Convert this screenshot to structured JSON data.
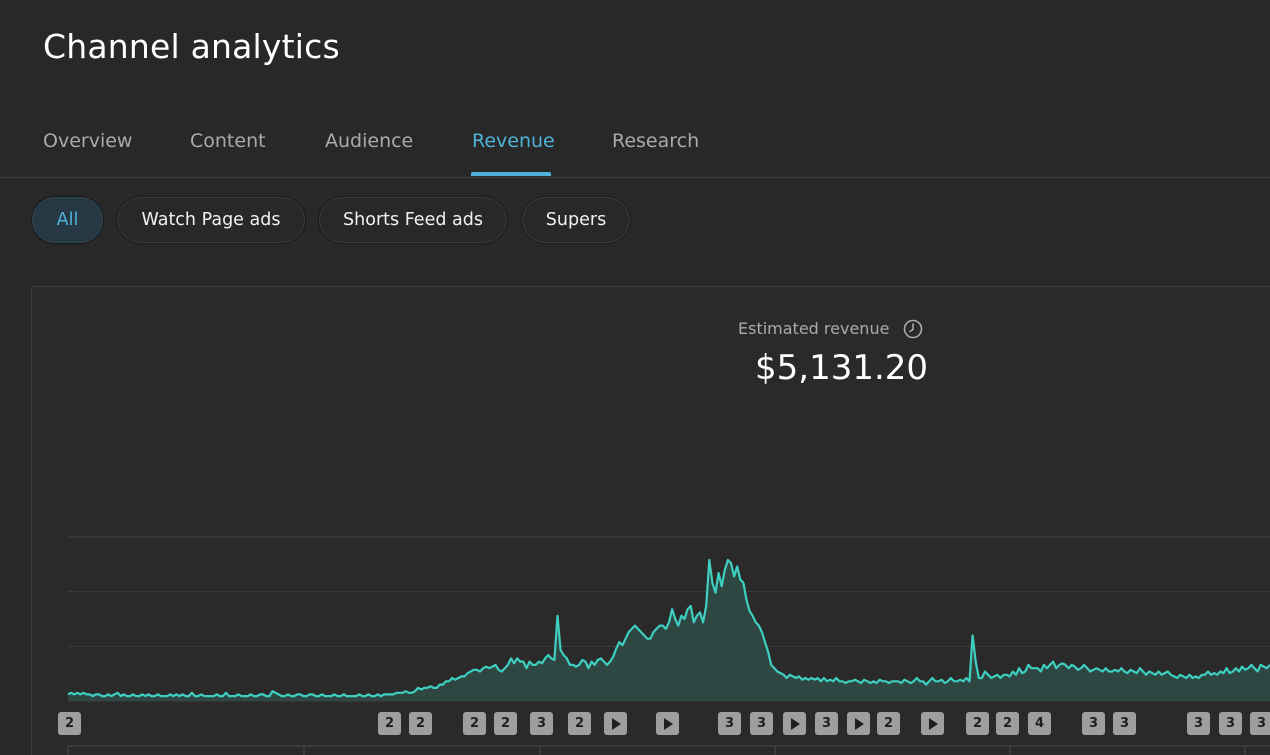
{
  "header": {
    "title": "Channel analytics"
  },
  "tabs": [
    {
      "label": "Overview"
    },
    {
      "label": "Content"
    },
    {
      "label": "Audience"
    },
    {
      "label": "Revenue",
      "active": true
    },
    {
      "label": "Research"
    }
  ],
  "chips": [
    {
      "label": "All",
      "active": true
    },
    {
      "label": "Watch Page ads"
    },
    {
      "label": "Shorts Feed ads"
    },
    {
      "label": "Supers"
    }
  ],
  "metric": {
    "label": "Estimated revenue",
    "value": "$5,131.20",
    "icon": "clock-icon"
  },
  "colors": {
    "accent": "#4fb3d9",
    "line": "#3ecfc0",
    "area": "#2f4a46",
    "background": "#282828"
  },
  "chart_data": {
    "type": "area",
    "title": "",
    "xlabel": "",
    "ylabel": "",
    "ylim": [
      0,
      100
    ],
    "grid": true,
    "series": [
      {
        "values": [
          4,
          5,
          4,
          5,
          4,
          5,
          4,
          4,
          3,
          4,
          4,
          3,
          3,
          4,
          3,
          4,
          5,
          3,
          4,
          3,
          3,
          4,
          3,
          3,
          4,
          3,
          4,
          3,
          3,
          4,
          3,
          3,
          3,
          4,
          3,
          4,
          3,
          4,
          3,
          3,
          5,
          3,
          3,
          4,
          3,
          3,
          3,
          3,
          4,
          3,
          3,
          5,
          3,
          3,
          3,
          4,
          3,
          3,
          3,
          4,
          3,
          3,
          4,
          4,
          3,
          3,
          6,
          5,
          4,
          3,
          3,
          4,
          3,
          3,
          4,
          4,
          3,
          3,
          4,
          4,
          3,
          3,
          4,
          3,
          3,
          3,
          4,
          3,
          3,
          4,
          3,
          3,
          3,
          3,
          4,
          3,
          3,
          4,
          3,
          3,
          4,
          3,
          4,
          4,
          4,
          4,
          5,
          5,
          5,
          6,
          5,
          5,
          6,
          8,
          7,
          8,
          8,
          9,
          8,
          8,
          10,
          10,
          12,
          12,
          14,
          13,
          14,
          15,
          15,
          17,
          18,
          19,
          19,
          18,
          20,
          21,
          20,
          21,
          22,
          19,
          18,
          20,
          22,
          26,
          23,
          26,
          24,
          24,
          20,
          24,
          22,
          22,
          24,
          23,
          26,
          28,
          26,
          25,
          52,
          31,
          28,
          26,
          22,
          22,
          21,
          22,
          25,
          24,
          20,
          24,
          22,
          25,
          26,
          24,
          22,
          24,
          27,
          32,
          36,
          34,
          38,
          42,
          44,
          46,
          44,
          42,
          40,
          38,
          38,
          42,
          44,
          46,
          46,
          44,
          48,
          56,
          50,
          46,
          52,
          50,
          56,
          58,
          48,
          52,
          54,
          48,
          58,
          86,
          72,
          66,
          78,
          70,
          80,
          86,
          84,
          76,
          82,
          74,
          72,
          62,
          55,
          52,
          48,
          46,
          42,
          36,
          30,
          22,
          20,
          18,
          17,
          16,
          14,
          16,
          15,
          14,
          15,
          13,
          14,
          13,
          14,
          13,
          14,
          12,
          14,
          12,
          13,
          12,
          14,
          12,
          12,
          11,
          12,
          12,
          13,
          12,
          11,
          13,
          12,
          11,
          12,
          11,
          13,
          12,
          12,
          11,
          12,
          12,
          12,
          11,
          13,
          12,
          11,
          12,
          14,
          12,
          12,
          10,
          12,
          14,
          12,
          12,
          13,
          11,
          12,
          14,
          12,
          12,
          13,
          12,
          14,
          12,
          40,
          24,
          14,
          14,
          18,
          16,
          14,
          15,
          16,
          14,
          16,
          16,
          15,
          18,
          16,
          20,
          17,
          18,
          22,
          20,
          20,
          20,
          18,
          22,
          20,
          22,
          24,
          20,
          22,
          23,
          22,
          20,
          22,
          21,
          19,
          20,
          22,
          20,
          18,
          19,
          20,
          19,
          18,
          20,
          18,
          18,
          19,
          18,
          20,
          18,
          17,
          19,
          18,
          17,
          20,
          18,
          16,
          18,
          17,
          16,
          18,
          16,
          17,
          18,
          16,
          15,
          14,
          16,
          15,
          14,
          16,
          14,
          15,
          14,
          16,
          16,
          18,
          16,
          17,
          16,
          18,
          17,
          20,
          17,
          18,
          20,
          18,
          21,
          19,
          20,
          22,
          20,
          18,
          22,
          21,
          20,
          22
        ]
      }
    ]
  },
  "markers": [
    "2",
    "2",
    "2",
    "2",
    "2",
    "3",
    "2",
    "play",
    "play",
    "3",
    "3",
    "play",
    "3",
    "play",
    "2",
    "play",
    "2",
    "2",
    "4",
    "3",
    "3",
    "3",
    "3",
    "3"
  ]
}
